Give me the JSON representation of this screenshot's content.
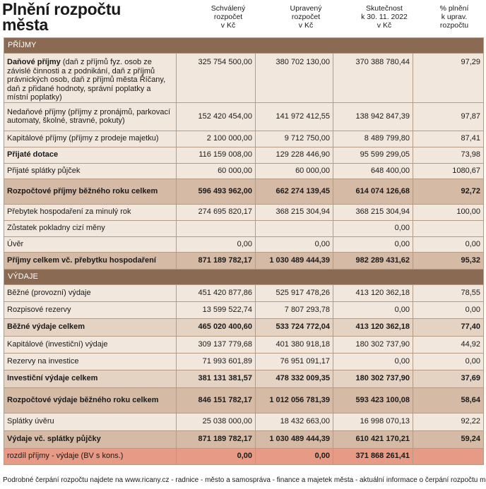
{
  "title": "Plnění rozpočtu\nměsta",
  "columns": [
    "Schválený\nrozpočet\nv Kč",
    "Upravený\nrozpočet\nv Kč",
    "Skutečnost\nk 30. 11. 2022\nv Kč",
    "% plnění\nk uprav.\nrozpočtu"
  ],
  "sections": {
    "income": "PŘÍJMY",
    "expenses": "VÝDAJE"
  },
  "rows": [
    {
      "bold_label": "Daňové příjmy",
      "label": " (daň z příjmů fyz. osob ze závislé činnosti a z podnikání, daň z příjmů právnických osob, daň z příjmů města Říčany, daň z přidané hodnoty, správní poplatky a místní poplatky)",
      "v1": "325 754 500,00",
      "v2": "380 702 130,00",
      "v3": "370 388 780,44",
      "v4": "97,29"
    },
    {
      "label": "Nedaňové příjmy (příjmy z pronájmů, parkovací automaty, školné, stravné, pokuty)",
      "v1": "152 420 454,00",
      "v2": "141 972 412,55",
      "v3": "138 942 847,39",
      "v4": "97,87"
    },
    {
      "label": "Kapitálové příjmy (příjmy z prodeje majetku)",
      "v1": "2 100 000,00",
      "v2": "9 712 750,00",
      "v3": "8 489 799,80",
      "v4": "87,41"
    },
    {
      "bold_label": "Přijaté dotace",
      "label": "",
      "v1": "116 159 008,00",
      "v2": "129 228 446,90",
      "v3": "95 599 299,05",
      "v4": "73,98"
    },
    {
      "label": "Přijaté splátky půjček",
      "v1": "60 000,00",
      "v2": "60 000,00",
      "v3": "648 400,00",
      "v4": "1080,67"
    },
    {
      "label": "Rozpočtové příjmy běžného roku celkem",
      "v1": "596 493 962,00",
      "v2": "662 274 139,45",
      "v3": "614 074 126,68",
      "v4": "92,72"
    },
    {
      "label": "Přebytek hospodaření za minulý rok",
      "v1": "274 695 820,17",
      "v2": "368 215 304,94",
      "v3": "368 215 304,94",
      "v4": "100,00"
    },
    {
      "label": "Zůstatek pokladny cizí měny",
      "v1": "",
      "v2": "",
      "v3": "0,00",
      "v4": ""
    },
    {
      "label": "Úvěr",
      "v1": "0,00",
      "v2": "0,00",
      "v3": "0,00",
      "v4": "0,00"
    },
    {
      "label": "Příjmy celkem vč. přebytku hospodaření",
      "v1": "871 189 782,17",
      "v2": "1 030 489 444,39",
      "v3": "982 289 431,62",
      "v4": "95,32"
    },
    {
      "label": "Běžné (provozní) výdaje",
      "v1": "451 420 877,86",
      "v2": "525 917 478,26",
      "v3": "413 120 362,18",
      "v4": "78,55"
    },
    {
      "label": "Rozpisové rezervy",
      "v1": "13 599 522,74",
      "v2": "7 807 293,78",
      "v3": "0,00",
      "v4": "0,00"
    },
    {
      "label": "Běžné výdaje celkem",
      "v1": "465 020 400,60",
      "v2": "533 724 772,04",
      "v3": "413 120 362,18",
      "v4": "77,40"
    },
    {
      "label": "Kapitálové (investiční) výdaje",
      "v1": "309 137 779,68",
      "v2": "401 380 918,18",
      "v3": "180 302 737,90",
      "v4": "44,92"
    },
    {
      "label": "Rezervy na investice",
      "v1": "71 993 601,89",
      "v2": "76 951 091,17",
      "v3": "0,00",
      "v4": "0,00"
    },
    {
      "label": "Investiční výdaje celkem",
      "v1": "381 131 381,57",
      "v2": "478 332 009,35",
      "v3": "180 302 737,90",
      "v4": "37,69"
    },
    {
      "label": "Rozpočtové výdaje běžného roku celkem",
      "v1": "846 151 782,17",
      "v2": "1 012 056 781,39",
      "v3": "593 423 100,08",
      "v4": "58,64"
    },
    {
      "label": "Splátky úvěru",
      "v1": "25 038 000,00",
      "v2": "18 432 663,00",
      "v3": "16 998 070,13",
      "v4": "92,22"
    },
    {
      "label": "Výdaje vč. splátky půjčky",
      "v1": "871 189 782,17",
      "v2": "1 030 489 444,39",
      "v3": "610 421 170,21",
      "v4": "59,24"
    },
    {
      "label": "rozdíl příjmy - výdaje (BV s kons.)",
      "v1": "0,00",
      "v2": "0,00",
      "v3": "371 868 261,41",
      "v4": ""
    }
  ],
  "footer": "Podrobné čerpání rozpočtu najdete na www.ricany.cz - radnice - město a samospráva - finance a majetek města - aktuální informace o čerpání rozpočtu města",
  "colors": {
    "section_header": "#8a6a52",
    "row_light": "#f2e7dc",
    "row_mid": "#e4d3c3",
    "row_total": "#d5bba5",
    "row_difference": "#e79a85"
  }
}
